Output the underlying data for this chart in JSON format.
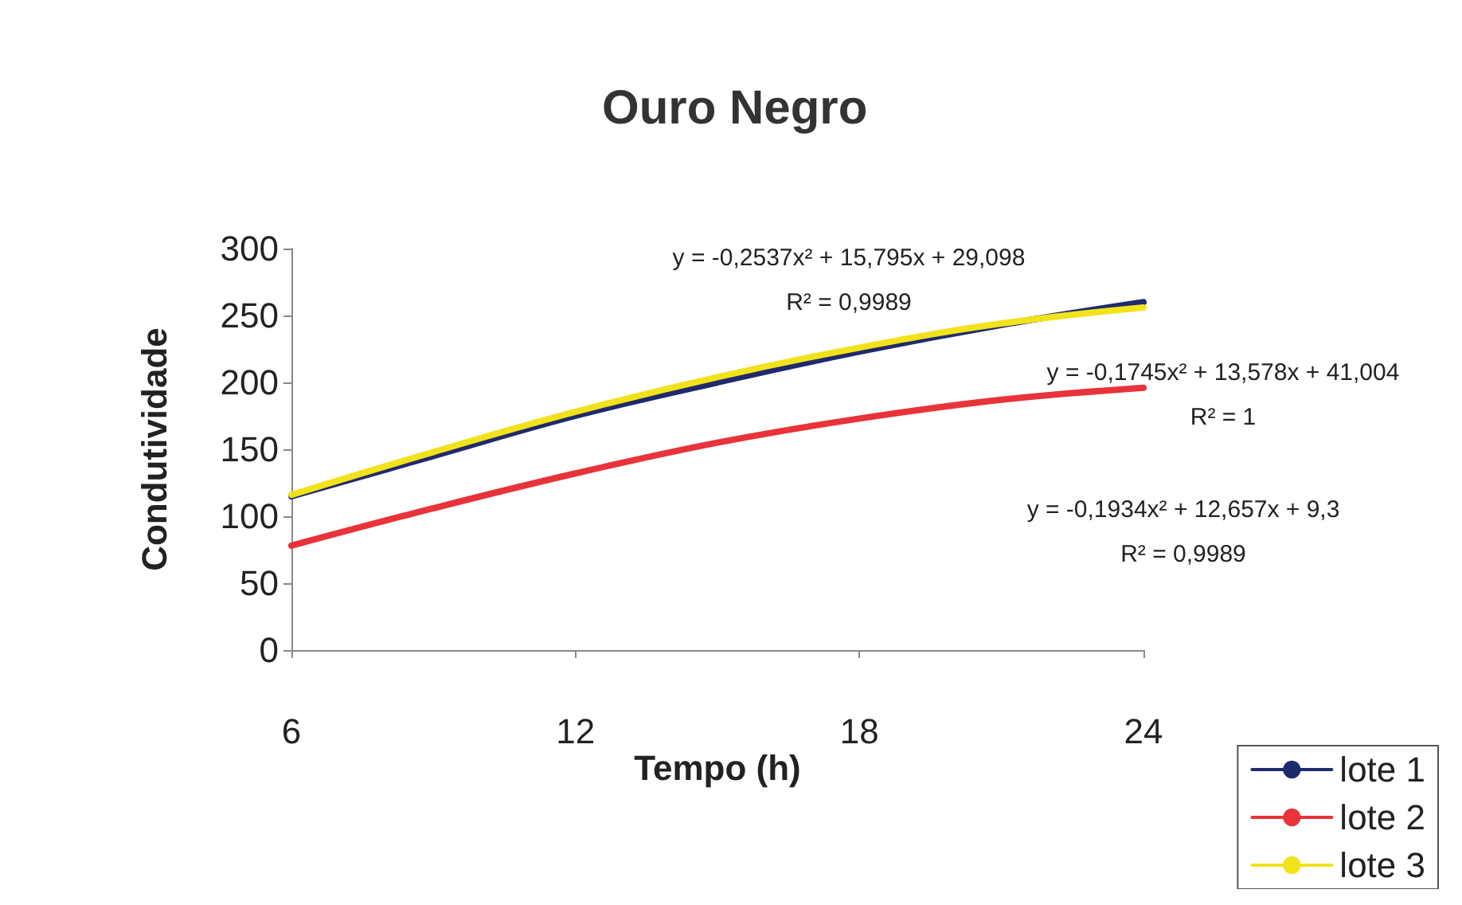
{
  "chart_data": {
    "type": "line",
    "title": "Ouro Negro",
    "xlabel": "Tempo (h)",
    "ylabel": "Condutividade",
    "x": [
      6,
      9,
      12,
      15,
      18,
      21,
      24
    ],
    "series": [
      {
        "name": "lote 1",
        "color": "#1f2a6e",
        "values": [
          115,
          145,
          175,
          200,
          223,
          243,
          260
        ]
      },
      {
        "name": "lote 2",
        "color": "#e8333a",
        "values": [
          78,
          106,
          132,
          155,
          173,
          187,
          196
        ]
      },
      {
        "name": "lote 3",
        "color": "#f2e21c",
        "values": [
          116,
          148,
          178,
          204,
          226,
          244,
          256
        ]
      }
    ],
    "xlim": [
      6,
      24
    ],
    "xticks": [
      6,
      12,
      18,
      24
    ],
    "ylim": [
      0,
      300
    ],
    "yticks": [
      0,
      50,
      100,
      150,
      200,
      250,
      300
    ],
    "grid": false,
    "legend": "bottom right",
    "marker": "none",
    "line_style": "solid",
    "annotations": [
      "y = -0,2537x² + 15,795x + 29,098\nR² = 0,9989",
      "y = -0,1745x² + 13,578x + 41,004\nR² = 1",
      "y = -0,1934x² + 12,657x + 9,3\nR² = 0,9989"
    ]
  }
}
